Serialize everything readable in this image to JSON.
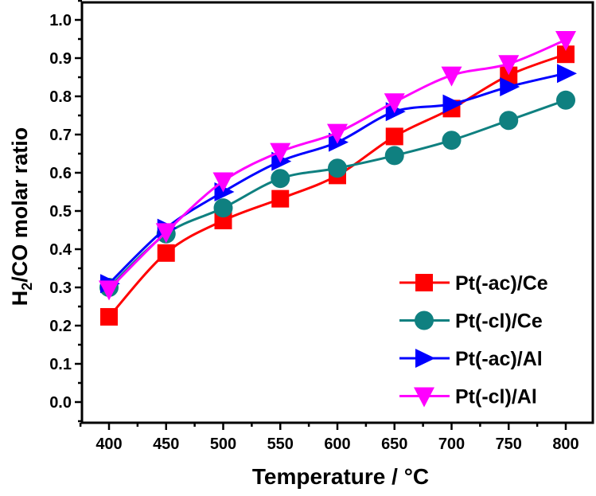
{
  "chart_data": {
    "type": "line",
    "title": "",
    "xlabel": "Temperature / °C",
    "ylabel_parts": {
      "pre": "H",
      "sub": "2",
      "post": "/CO molar ratio"
    },
    "ylabel": "H2/CO molar ratio",
    "x": [
      400,
      450,
      500,
      550,
      600,
      650,
      700,
      750,
      800
    ],
    "xticks": [
      "400",
      "450",
      "500",
      "550",
      "600",
      "650",
      "700",
      "750",
      "800"
    ],
    "yticks": [
      "0.0",
      "0.1",
      "0.2",
      "0.3",
      "0.4",
      "0.5",
      "0.6",
      "0.7",
      "0.8",
      "0.9",
      "1.0"
    ],
    "xlim": [
      388,
      812
    ],
    "ylim": [
      -0.05,
      1.05
    ],
    "grid": false,
    "legend_position": "bottom-right",
    "series": [
      {
        "name": "Pt(-ac)/Ce",
        "color": "#ff0000",
        "marker": "square",
        "values": [
          0.223,
          0.39,
          0.475,
          0.532,
          0.593,
          0.695,
          0.768,
          0.855,
          0.91
        ]
      },
      {
        "name": "Pt(-cl)/Ce",
        "color": "#0f8080",
        "marker": "circle",
        "values": [
          0.3,
          0.44,
          0.508,
          0.585,
          0.612,
          0.645,
          0.685,
          0.737,
          0.79
        ]
      },
      {
        "name": "Pt(-ac)/Al",
        "color": "#0000ff",
        "marker": "triangle-right",
        "values": [
          0.31,
          0.455,
          0.55,
          0.63,
          0.68,
          0.76,
          0.78,
          0.825,
          0.86
        ]
      },
      {
        "name": "Pt(-cl)/Al",
        "color": "#ff00ff",
        "marker": "triangle-down",
        "values": [
          0.295,
          0.445,
          0.578,
          0.655,
          0.705,
          0.785,
          0.855,
          0.885,
          0.948
        ]
      }
    ]
  }
}
